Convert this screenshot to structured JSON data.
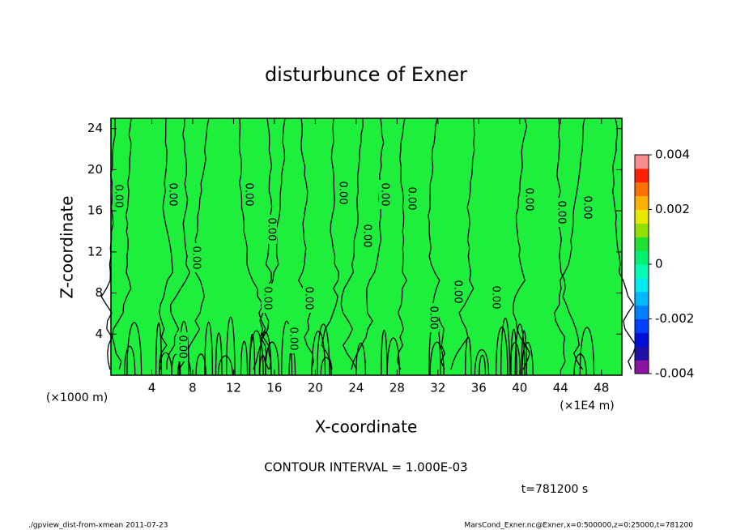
{
  "chart_data": {
    "type": "contour",
    "title": "disturbunce of Exner",
    "xlabel": "X-coordinate",
    "ylabel": "Z-coordinate",
    "x_unit_left": "(×1000 m)",
    "x_unit_right": "(×1E4 m)",
    "xlim": [
      0,
      50
    ],
    "xticks": [
      4,
      8,
      12,
      16,
      20,
      24,
      28,
      32,
      36,
      40,
      44,
      48
    ],
    "ylim": [
      0,
      25
    ],
    "yticks": [
      4,
      8,
      12,
      16,
      20,
      24
    ],
    "field_color": "#1eee3c",
    "clim": [
      -0.004,
      0.004
    ],
    "cticks": [
      -0.004,
      -0.002,
      0,
      0.002,
      0.004
    ],
    "colors": [
      "#8c14a0",
      "#2010a8",
      "#0010d8",
      "#0040ff",
      "#0080ff",
      "#00b8ff",
      "#00e8f0",
      "#00ffb0",
      "#00f070",
      "#20e030",
      "#90e000",
      "#e8e800",
      "#ffb000",
      "#ff7000",
      "#ff2000",
      "#ff8c8c"
    ],
    "contour_labels": [
      "0.00",
      "0.00",
      "0.00",
      "0.00",
      "0.00",
      "0.00",
      "0.00",
      "0.00",
      "0.00",
      "0.00",
      "0.00",
      "0.00",
      "0.00",
      "0.00",
      "0.00",
      "0.00",
      "0.00",
      "0.00",
      "0.00"
    ],
    "contour_interval": "CONTOUR INTERVAL = 1.000E-03",
    "time_label": "t=781200 s",
    "footer_left": "./gpview_dist-from-xmean  2011-07-23",
    "footer_right": "MarsCond_Exner.nc@Exner,x=0:500000,z=0:25000,t=781200"
  }
}
